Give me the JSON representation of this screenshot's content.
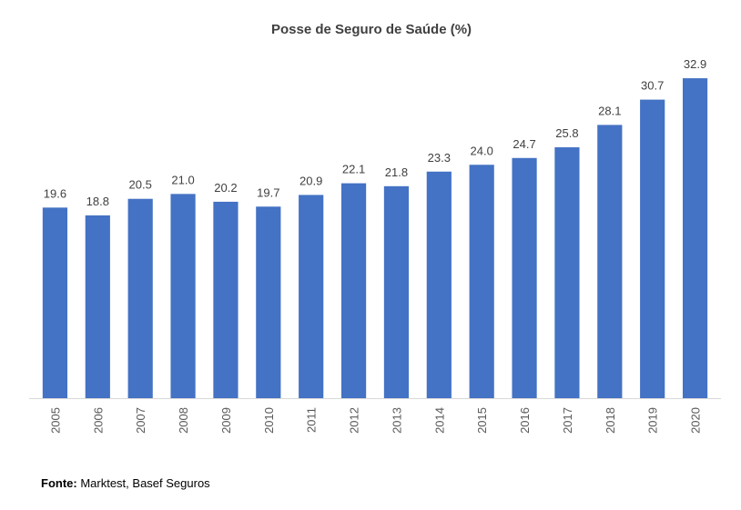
{
  "chart_data": {
    "type": "bar",
    "title": "Posse de Seguro de Saúde (%)",
    "categories": [
      "2005",
      "2006",
      "2007",
      "2008",
      "2009",
      "2010",
      "2011",
      "2012",
      "2013",
      "2014",
      "2015",
      "2016",
      "2017",
      "2018",
      "2019",
      "2020"
    ],
    "values": [
      19.6,
      18.8,
      20.5,
      21.0,
      20.2,
      19.7,
      20.9,
      22.1,
      21.8,
      23.3,
      24.0,
      24.7,
      25.8,
      28.1,
      30.7,
      32.9
    ],
    "value_labels": [
      "19.6",
      "18.8",
      "20.5",
      "21.0",
      "20.2",
      "19.7",
      "20.9",
      "22.1",
      "21.8",
      "23.3",
      "24.0",
      "24.7",
      "25.8",
      "28.1",
      "30.7",
      "32.9"
    ],
    "xlabel": "",
    "ylabel": "",
    "ylim": [
      0,
      33
    ],
    "grid": false,
    "legend": "none",
    "colors": {
      "bar": "#4472C4",
      "axis": "#D9D9D9"
    }
  },
  "source": {
    "label": "Fonte:",
    "text": " Marktest, Basef Seguros"
  }
}
